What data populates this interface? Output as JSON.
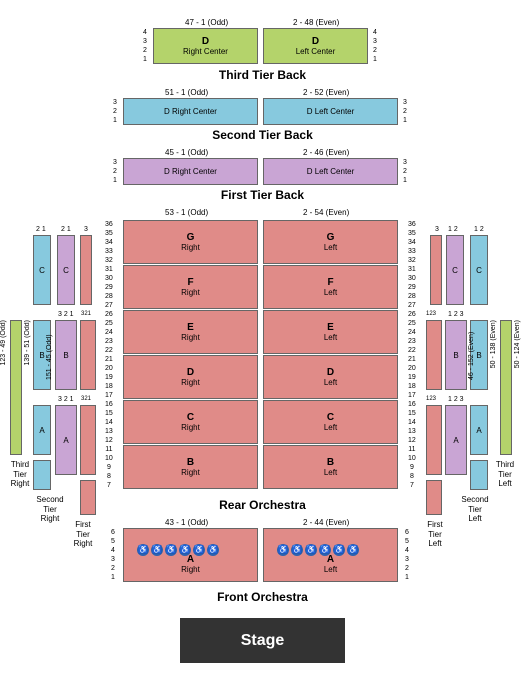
{
  "colors": {
    "green": "#b4d36b",
    "blue": "#87c9de",
    "purple": "#c9a5d4",
    "coral": "#e08b88",
    "stage": "#333333",
    "border": "#666666"
  },
  "stage_label": "Stage",
  "tiers": {
    "third_back": {
      "title": "Third Tier Back",
      "range_left": "47 - 1 (Odd)",
      "range_right": "2 - 48 (Even)",
      "rows": [
        "4",
        "3",
        "2",
        "1"
      ],
      "left_sec": {
        "title": "D",
        "sub": "Right Center"
      },
      "right_sec": {
        "title": "D",
        "sub": "Left Center"
      }
    },
    "second_back": {
      "title": "Second Tier Back",
      "range_left": "51 - 1 (Odd)",
      "range_right": "2 - 52 (Even)",
      "rows": [
        "3",
        "2",
        "1"
      ],
      "left_sec": {
        "title": "D Right Center"
      },
      "right_sec": {
        "title": "D Left Center"
      }
    },
    "first_back": {
      "title": "First Tier Back",
      "range_left": "45 - 1 (Odd)",
      "range_right": "2 - 46 (Even)",
      "rows": [
        "3",
        "2",
        "1"
      ],
      "left_sec": {
        "title": "D Right Center"
      },
      "right_sec": {
        "title": "D Left Center"
      }
    },
    "rear_orch": {
      "title": "Rear Orchestra",
      "range_left": "53 - 1 (Odd)",
      "range_right": "2 - 54 (Even)",
      "rows": [
        "36",
        "35",
        "34",
        "33",
        "32",
        "31",
        "30",
        "29",
        "28",
        "27",
        "26",
        "25",
        "24",
        "23",
        "22",
        "21",
        "20",
        "19",
        "18",
        "17",
        "16",
        "15",
        "14",
        "13",
        "12",
        "11",
        "10",
        "9",
        "8",
        "7"
      ],
      "blocks": [
        {
          "title": "G",
          "sub_l": "Right",
          "sub_r": "Left"
        },
        {
          "title": "F",
          "sub_l": "Right",
          "sub_r": "Left"
        },
        {
          "title": "E",
          "sub_l": "Right",
          "sub_r": "Left"
        },
        {
          "title": "D",
          "sub_l": "Right",
          "sub_r": "Left"
        },
        {
          "title": "C",
          "sub_l": "Right",
          "sub_r": "Left"
        },
        {
          "title": "B",
          "sub_l": "Right",
          "sub_r": "Left"
        }
      ]
    },
    "front_orch": {
      "title": "Front Orchestra",
      "range_left": "43 - 1 (Odd)",
      "range_right": "2 - 44 (Even)",
      "rows": [
        "6",
        "5",
        "4",
        "3",
        "2",
        "1"
      ],
      "left_sec": {
        "title": "A",
        "sub": "Right"
      },
      "right_sec": {
        "title": "A",
        "sub": "Left"
      }
    }
  },
  "side_sections": {
    "right": {
      "C": {
        "letter": "C",
        "rows": [
          "2",
          "1"
        ]
      },
      "B": {
        "letter": "B",
        "rows": [
          "3",
          "2",
          "1"
        ]
      },
      "A": {
        "letter": "A",
        "rows": [
          "3",
          "2",
          "1"
        ]
      },
      "third": {
        "label": "Third\nTier\nRight",
        "rows": [
          "1"
        ]
      },
      "second": {
        "label": "Second\nTier\nRight",
        "rows": [
          "1 2"
        ]
      },
      "first": {
        "label": "First\nTier\nRight",
        "rows": [
          "1 2"
        ]
      },
      "v1": "123 - 49 (Odd)",
      "v2": "139 - 51 (Odd)",
      "v3": "151 - 45 (Odd)"
    },
    "left": {
      "C": {
        "letter": "C",
        "rows": [
          "1",
          "2"
        ]
      },
      "B": {
        "letter": "B",
        "rows": [
          "1",
          "2",
          "3"
        ]
      },
      "A": {
        "letter": "A",
        "rows": [
          "1",
          "2",
          "3"
        ]
      },
      "third": {
        "label": "Third\nTier\nLeft",
        "rows": [
          "1"
        ]
      },
      "second": {
        "label": "Second\nTier\nLeft",
        "rows": [
          "1 2"
        ]
      },
      "first": {
        "label": "First\nTier\nLeft",
        "rows": [
          "1 2"
        ]
      },
      "v1": "50 - 124 (Even)",
      "v2": "50 - 138 (Even)",
      "v3": "46 - 152 (Even)"
    }
  },
  "wc_icon": "♿"
}
